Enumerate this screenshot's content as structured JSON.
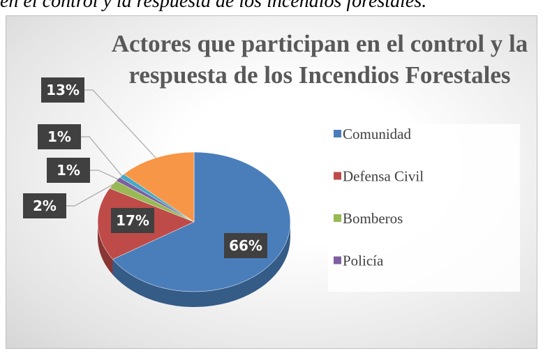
{
  "caption": "en el control y la respuesta de los incendios forestales.",
  "chart_data": {
    "type": "pie",
    "title": "Actores que participan en el control y la respuesta de los Incendios Forestales",
    "categories": [
      "Comunidad",
      "Defensa Civil",
      "Bomberos",
      "Policía",
      null,
      null
    ],
    "values": [
      66,
      17,
      2,
      1,
      1,
      13
    ],
    "value_labels": [
      "66%",
      "17%",
      "2%",
      "1%",
      "1%",
      "13%"
    ],
    "colors": [
      "#4a7ebb",
      "#be4b48",
      "#98b954",
      "#7d60a0",
      "#46aac5",
      "#f79646"
    ],
    "legend": "right"
  }
}
